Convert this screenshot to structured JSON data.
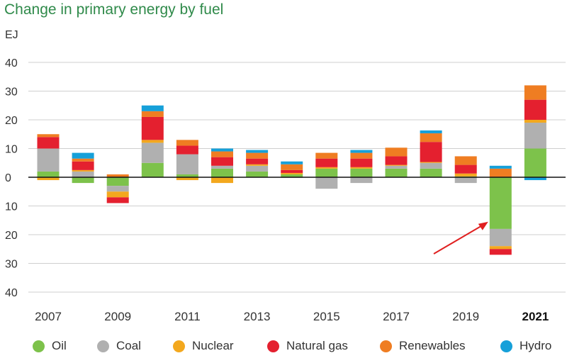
{
  "title": "Change in primary energy by fuel",
  "chart_data": {
    "type": "bar",
    "stacked": true,
    "ylabel": "EJ",
    "ylim": [
      -40,
      40
    ],
    "yticks": [
      40,
      30,
      20,
      10,
      0,
      -10,
      -20,
      -30,
      -40
    ],
    "ytick_labels": [
      "40",
      "30",
      "20",
      "10",
      "0",
      "10",
      "20",
      "30",
      "40"
    ],
    "categories": [
      "2007",
      "2008",
      "2009",
      "2010",
      "2011",
      "2012",
      "2013",
      "2014",
      "2015",
      "2016",
      "2017",
      "2018",
      "2019",
      "2020",
      "2021"
    ],
    "xtick_labels": [
      {
        "label": "2007",
        "bold": false
      },
      {
        "label": "2009",
        "bold": false
      },
      {
        "label": "2011",
        "bold": false
      },
      {
        "label": "2013",
        "bold": false
      },
      {
        "label": "2015",
        "bold": false
      },
      {
        "label": "2017",
        "bold": false
      },
      {
        "label": "2019",
        "bold": false
      },
      {
        "label": "2021",
        "bold": true
      }
    ],
    "series": [
      {
        "name": "Oil",
        "color": "#7dc24b",
        "values": [
          2,
          -2,
          -3,
          5,
          1,
          3,
          2,
          1,
          3,
          3,
          3,
          3,
          0.3,
          -18,
          10
        ]
      },
      {
        "name": "Coal",
        "color": "#b0b0b0",
        "values": [
          8,
          2,
          -2,
          7,
          7,
          1,
          2,
          -0.2,
          -4,
          -2,
          1,
          2,
          -2,
          -6,
          9
        ]
      },
      {
        "name": "Nuclear",
        "color": "#f3a81e",
        "values": [
          -1,
          0.5,
          -2,
          1,
          -1,
          -2,
          0.5,
          0.5,
          0.5,
          0.5,
          0.3,
          0.3,
          1,
          -1,
          1
        ]
      },
      {
        "name": "Natural gas",
        "color": "#e4202f",
        "values": [
          4,
          3,
          -2,
          8,
          3,
          3,
          2,
          1,
          3,
          3,
          3,
          7,
          3,
          -2,
          7
        ]
      },
      {
        "name": "Renewables",
        "color": "#ef7d22",
        "values": [
          1,
          1,
          1,
          2,
          2,
          2,
          2,
          2,
          2,
          2,
          3,
          3,
          3,
          3,
          5
        ]
      },
      {
        "name": "Hydro",
        "color": "#16a0d9",
        "values": [
          0,
          2,
          0,
          2,
          0,
          1,
          1,
          1,
          0,
          1,
          0,
          1,
          0,
          1,
          -1
        ]
      }
    ],
    "annotation": {
      "type": "arrow",
      "points_to": "2020",
      "color": "#e02020"
    },
    "legend_position": "bottom"
  }
}
